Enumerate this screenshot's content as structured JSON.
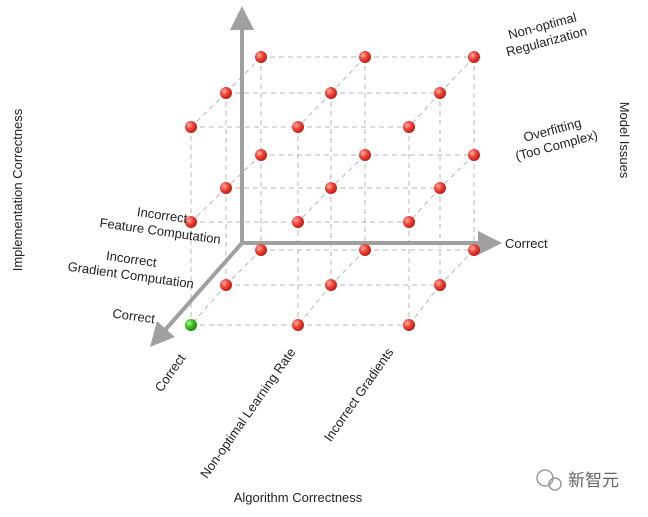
{
  "axes": {
    "implementation": {
      "title": "Implementation Correctness",
      "levels": [
        [
          "Correct"
        ],
        [
          "Incorrect",
          "Gradient Computation"
        ],
        [
          "Incorrect",
          "Feature Computation"
        ]
      ]
    },
    "algorithm": {
      "title": "Algorithm Correctness",
      "levels": [
        [
          "Correct"
        ],
        [
          "Non-optimal Learning Rate"
        ],
        [
          "Incorrect Gradients"
        ]
      ]
    },
    "model": {
      "title": "Model Issues",
      "levels": [
        [
          "Correct"
        ],
        [
          "Overfitting",
          "(Too Complex)"
        ],
        [
          "Non-optimal",
          "Regularization"
        ]
      ]
    }
  },
  "watermark": "新智元"
}
